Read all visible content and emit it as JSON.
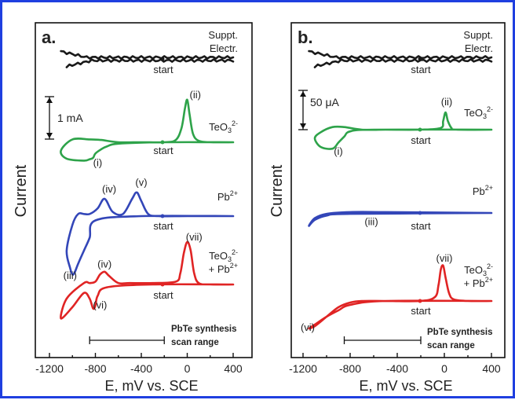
{
  "colors": {
    "frame_border": "#1f3fe0",
    "suppt": "#1a1a1a",
    "teo3": "#2ea34a",
    "pb": "#3346b8",
    "mix": "#e02424",
    "axis": "#111111"
  },
  "chart_data": [
    {
      "type": "line",
      "panel_label": "a.",
      "xlabel": "E, mV vs. SCE",
      "ylabel": "Current",
      "xlim": [
        -1200,
        450
      ],
      "x_ticks": [
        -1200,
        -800,
        -400,
        0,
        400
      ],
      "x_tick_labels": [
        "-1200",
        "-800",
        "-400",
        "0",
        "400"
      ],
      "scale_bar": {
        "label": "1 mA",
        "value_mA": 1
      },
      "scan_range": {
        "label_line1": "PbTe synthesis",
        "label_line2": "scan range",
        "from": -850,
        "to": -200
      },
      "series": [
        {
          "name": "Suppt. Electr.",
          "name_line1": "Suppt.",
          "name_line2": "Electr.",
          "color_key": "suppt",
          "baseline": 0,
          "x": [
            400,
            -1100,
            400,
            -1050
          ],
          "current": [
            0,
            0.06,
            0,
            -0.06
          ],
          "start_label": "start",
          "annotations": []
        },
        {
          "name": "TeO3 2-",
          "name_line1": "TeO",
          "name_sub": "3",
          "name_sup": "2-",
          "color_key": "teo3",
          "baseline": 0,
          "x": [
            400,
            -200,
            -600,
            -700,
            -750,
            -800,
            -820,
            -850,
            -900,
            -1050,
            -1100,
            -1000,
            -850,
            -750,
            -600,
            -400,
            -200,
            -100,
            -50,
            -20,
            0,
            20,
            50,
            100,
            200,
            400
          ],
          "current": [
            0,
            0,
            -0.05,
            -0.15,
            -0.25,
            -0.4,
            -0.55,
            -0.6,
            -0.65,
            -0.58,
            -0.3,
            0.1,
            0.1,
            0.08,
            0,
            0,
            0,
            0.08,
            0.5,
            1.2,
            1.5,
            1.0,
            0.3,
            0.05,
            0,
            0
          ],
          "start_label": "start",
          "annotations": [
            {
              "label": "(i)",
              "x": -780,
              "current": -0.85
            },
            {
              "label": "(ii)",
              "x": 70,
              "current": 1.55
            }
          ]
        },
        {
          "name": "Pb2+",
          "name_line1": "Pb",
          "name_sup": "2+",
          "color_key": "pb",
          "baseline": 0,
          "x": [
            400,
            -400,
            -800,
            -850,
            -900,
            -950,
            -980,
            -1000,
            -1020,
            -1050,
            -1000,
            -950,
            -900,
            -850,
            -780,
            -720,
            -650,
            -560,
            -480,
            -440,
            -400,
            -340,
            -250,
            0,
            400
          ],
          "current": [
            0,
            0,
            -0.1,
            -0.5,
            -0.8,
            -1.1,
            -1.3,
            -1.35,
            -1.2,
            -0.8,
            -0.2,
            0.05,
            0.05,
            0.05,
            0.18,
            0.4,
            0.1,
            0.05,
            0.4,
            0.55,
            0.35,
            0.05,
            0,
            0,
            0
          ],
          "start_label": "start",
          "annotations": [
            {
              "label": "(iii)",
              "x": -1020,
              "current": -1.45
            },
            {
              "label": "(iv)",
              "x": -680,
              "current": 0.55
            },
            {
              "label": "(v)",
              "x": -400,
              "current": 0.7
            }
          ]
        },
        {
          "name": "TeO3 2- + Pb2+",
          "name_line1": "TeO",
          "name_sub": "3",
          "name_sup": "2-",
          "name_line2": "+ Pb",
          "name_sup2": "2+",
          "color_key": "mix",
          "baseline": 0,
          "x": [
            400,
            -300,
            -700,
            -780,
            -800,
            -820,
            -850,
            -900,
            -1000,
            -1100,
            -1050,
            -900,
            -850,
            -800,
            -760,
            -720,
            -680,
            -600,
            -500,
            -300,
            -100,
            -60,
            -30,
            0,
            30,
            60,
            100,
            200,
            400
          ],
          "current": [
            0,
            0,
            -0.1,
            -0.4,
            -0.75,
            -0.85,
            -0.5,
            -0.3,
            -0.8,
            -1.2,
            -0.5,
            0.05,
            0.05,
            0.1,
            0.35,
            0.45,
            0.3,
            0.05,
            0.05,
            0.05,
            0.1,
            0.4,
            1.1,
            1.5,
            1.2,
            0.4,
            0.05,
            0,
            0
          ],
          "start_label": "start",
          "annotations": [
            {
              "label": "(iv)",
              "x": -720,
              "current": 0.6
            },
            {
              "label": "(vi)",
              "x": -760,
              "current": -0.85
            },
            {
              "label": "(vii)",
              "x": 60,
              "current": 1.55
            }
          ]
        }
      ]
    },
    {
      "type": "line",
      "panel_label": "b.",
      "xlabel": "E, mV vs. SCE",
      "ylabel": "Current",
      "xlim": [
        -1300,
        450
      ],
      "x_ticks": [
        -1200,
        -800,
        -400,
        0,
        400
      ],
      "x_tick_labels": [
        "-1200",
        "-800",
        "-400",
        "0",
        "400"
      ],
      "scale_bar": {
        "label": "50 μA",
        "value_uA": 50
      },
      "scan_range": {
        "label_line1": "PbTe synthesis",
        "label_line2": "scan range",
        "from": -850,
        "to": -200
      },
      "series": [
        {
          "name": "Suppt. Electr.",
          "name_line1": "Suppt.",
          "name_line2": "Electr.",
          "color_key": "suppt",
          "baseline": 0,
          "x": [
            400,
            -1150,
            400,
            -1100
          ],
          "current": [
            0,
            3,
            0,
            -3
          ],
          "start_label": "start",
          "annotations": []
        },
        {
          "name": "TeO3 2-",
          "name_line1": "TeO",
          "name_sub": "3",
          "name_sup": "2-",
          "color_key": "teo3",
          "baseline": 0,
          "x": [
            400,
            -600,
            -800,
            -850,
            -900,
            -950,
            -1050,
            -1100,
            -1050,
            -950,
            -850,
            -700,
            -500,
            -200,
            -30,
            -10,
            10,
            30,
            60,
            100,
            400
          ],
          "current": [
            0,
            0,
            -2,
            -8,
            -15,
            -22,
            -20,
            -10,
            -3,
            3,
            3,
            0,
            0,
            0,
            2,
            10,
            20,
            10,
            2,
            0,
            0
          ],
          "start_label": "start",
          "annotations": [
            {
              "label": "(i)",
              "x": -900,
              "current": -29
            },
            {
              "label": "(ii)",
              "x": 20,
              "current": 28
            }
          ]
        },
        {
          "name": "Pb2+",
          "name_line1": "Pb",
          "name_sup": "2+",
          "color_key": "pb",
          "baseline": 0,
          "x": [
            400,
            -800,
            -1000,
            -1100,
            -1150,
            -1100,
            -1000,
            -800,
            -500,
            400
          ],
          "current": [
            0,
            -1,
            -3,
            -8,
            -15,
            -6,
            -1,
            1,
            1,
            0
          ],
          "start_label": "start",
          "annotations": [
            {
              "label": "(iii)",
              "x": -620,
              "current": -14
            }
          ]
        },
        {
          "name": "TeO3 2- + Pb2+",
          "name_line1": "TeO",
          "name_sub": "3",
          "name_sup": "2-",
          "name_line2": "+ Pb",
          "name_sup2": "2+",
          "color_key": "mix",
          "baseline": 0,
          "x": [
            400,
            -500,
            -800,
            -900,
            -1000,
            -1100,
            -1150,
            -1100,
            -1000,
            -900,
            -800,
            -700,
            -500,
            -200,
            -80,
            -50,
            -30,
            -10,
            10,
            40,
            80,
            200,
            400
          ],
          "current": [
            0,
            0,
            -5,
            -12,
            -20,
            -30,
            -35,
            -32,
            -20,
            -8,
            -2,
            0,
            0,
            0,
            5,
            20,
            40,
            45,
            30,
            10,
            2,
            0,
            0
          ],
          "start_label": "start",
          "annotations": [
            {
              "label": "(vi)",
              "x": -1160,
              "current": -38
            },
            {
              "label": "(vii)",
              "x": 0,
              "current": 50
            }
          ]
        }
      ]
    }
  ]
}
